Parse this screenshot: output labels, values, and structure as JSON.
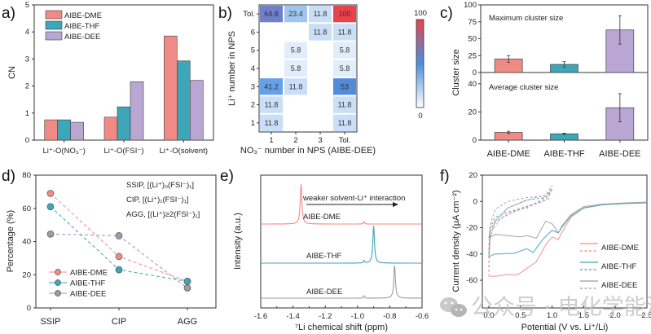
{
  "colors": {
    "dme": "#F08A84",
    "thf": "#3DA6B8",
    "dee": "#B9A6D3",
    "dee_line": "#9E9AA6",
    "heat_low": "#FFFFFF",
    "heat_mid": "#4A90E2",
    "heat_high": "#E8434B"
  },
  "watermark": "公众号 · 电化学能源",
  "chart_data": [
    {
      "panel": "a)",
      "type": "bar",
      "ylabel": "CN",
      "xlabel": "",
      "ylim": [
        0,
        5
      ],
      "yticks": [
        "0",
        "1",
        "2",
        "3",
        "4",
        "5"
      ],
      "categories": [
        "Li⁺-O(NO₃⁻)",
        "Li⁺-O(FSI⁻)",
        "Li⁺-O(solvent)"
      ],
      "series": [
        {
          "name": "AIBE-DME",
          "values": [
            0.75,
            0.85,
            3.85
          ]
        },
        {
          "name": "AIBE-THF",
          "values": [
            0.75,
            1.23,
            2.93
          ]
        },
        {
          "name": "AIBE-DEE",
          "values": [
            0.66,
            2.16,
            2.21
          ]
        }
      ],
      "legend": "top-left"
    },
    {
      "panel": "b)",
      "type": "heatmap",
      "xlabel": "NO₃⁻ number in NPS (AIBE-DEE)",
      "ylabel": "Li⁺ number in NPS",
      "x_categories": [
        "1",
        "2",
        "3",
        "Tol."
      ],
      "y_categories": [
        "Tol.",
        "6",
        "5",
        "4",
        "3",
        "2",
        "1"
      ],
      "values": [
        [
          64.8,
          23.4,
          11.8,
          100
        ],
        [
          null,
          null,
          11.8,
          11.8
        ],
        [
          null,
          5.8,
          null,
          5.8
        ],
        [
          null,
          5.8,
          null,
          5.8
        ],
        [
          41.2,
          11.8,
          null,
          53
        ],
        [
          11.8,
          null,
          null,
          11.8
        ],
        [
          11.8,
          null,
          null,
          11.8
        ]
      ],
      "labels": [
        [
          "64.8",
          "23.4",
          "11.8",
          "100"
        ],
        [
          "",
          "",
          "11.8",
          "11.8"
        ],
        [
          "",
          "5.8",
          "",
          "5.8"
        ],
        [
          "",
          "5.8",
          "",
          "5.8"
        ],
        [
          "41.2",
          "11.8",
          "",
          "53"
        ],
        [
          "11.8",
          "",
          "",
          "11.8"
        ],
        [
          "11.8",
          "",
          "",
          "11.8"
        ]
      ],
      "colorbar": {
        "min": 0,
        "max": 100,
        "min_label": "0",
        "max_label": "100"
      }
    },
    {
      "panel": "c)",
      "type": "bar",
      "ylabel": "Cluster size",
      "categories": [
        "AIBE-DME",
        "AIBE-THF",
        "AIBE-DEE"
      ],
      "subplots": [
        {
          "title": "Maximum cluster size",
          "ylim": [
            0,
            100
          ],
          "yticks": [
            "0",
            "25",
            "50",
            "75",
            "100"
          ],
          "values": [
            20,
            12,
            63
          ],
          "errors": [
            5,
            4,
            21
          ]
        },
        {
          "title": "Average cluster size",
          "ylim": [
            0,
            48
          ],
          "yticks": [
            "0",
            "20",
            "40"
          ],
          "values": [
            5.5,
            4.5,
            23
          ],
          "errors": [
            0.8,
            0.4,
            10
          ]
        }
      ]
    },
    {
      "panel": "d)",
      "type": "line",
      "ylabel": "Percentage (%)",
      "ylim": [
        0,
        80
      ],
      "yticks": [
        "0",
        "20",
        "40",
        "60",
        "80"
      ],
      "categories": [
        "SSIP",
        "CIP",
        "AGG"
      ],
      "series": [
        {
          "name": "AIBE-DME",
          "values": [
            69,
            31,
            16
          ]
        },
        {
          "name": "AIBE-THF",
          "values": [
            61,
            23,
            16
          ]
        },
        {
          "name": "AIBE-DEE",
          "values": [
            44.5,
            43.5,
            12
          ]
        }
      ],
      "annotations": [
        {
          "name": "SSIP",
          "formula": "[(Li⁺)₀(FSI⁻)₁]"
        },
        {
          "name": "CIP",
          "formula": "[(Li⁺)₁(FSI⁻)₁]"
        },
        {
          "name": "AGG",
          "formula": "[(Li⁺)≥2(FSI⁻)₁]"
        }
      ],
      "legend": "bottom-left"
    },
    {
      "panel": "e)",
      "type": "line",
      "xlabel": "⁷Li chemical shift (ppm)",
      "ylabel": "Intensity (a.u.)",
      "xlim": [
        -1.6,
        -0.6
      ],
      "xticks": [
        "-1.6",
        "-1.4",
        "-1.2",
        "-1.0",
        "-0.8",
        "-0.6"
      ],
      "annotation": "weaker solvent-Li⁺ interaction",
      "series": [
        {
          "name": "AIBE-DME",
          "peak_ppm": -1.35,
          "minor_peak_ppm": -0.96
        },
        {
          "name": "AIBE-THF",
          "peak_ppm": -0.9,
          "minor_peak_ppm": -0.96
        },
        {
          "name": "AIBE-DEE",
          "peak_ppm": -0.77,
          "minor_peak_ppm": -0.96
        }
      ]
    },
    {
      "panel": "f)",
      "type": "line",
      "xlabel": "Potential (V vs. Li⁺/Li)",
      "ylabel": "Current density (μA cm⁻²)",
      "xlim": [
        0,
        2.5
      ],
      "ylim": [
        -68,
        20
      ],
      "xticks": [
        "0.0",
        "0.5",
        "1.0",
        "1.5",
        "2.0",
        "2.5"
      ],
      "yticks": [
        "-60",
        "-40",
        "-20",
        "0",
        "20"
      ],
      "legend": "right",
      "series": [
        {
          "name": "AIBE-DME",
          "style": "solid",
          "x": [
            0,
            0.1,
            0.3,
            0.45,
            0.6,
            0.75,
            0.9,
            1.0,
            1.1,
            1.15,
            1.3,
            1.5,
            1.8,
            2.2,
            2.5
          ],
          "y": [
            -57,
            -57,
            -55.5,
            -56,
            -51,
            -46,
            -33,
            -27,
            -29,
            -24,
            -12,
            -5,
            -2.5,
            -1.5,
            -1
          ]
        },
        {
          "name": "AIBE-DME cycle",
          "style": "dashed",
          "x": [
            0,
            0.0,
            0.05,
            0.2,
            0.5,
            0.8,
            0.95,
            1.0,
            0.9,
            0.6,
            0.3,
            0.1,
            0.02,
            0
          ],
          "y": [
            -57,
            -30,
            -22,
            -12,
            -5,
            -1,
            2,
            12,
            5,
            1,
            -5,
            -15,
            -22,
            -57
          ]
        },
        {
          "name": "AIBE-THF",
          "style": "solid",
          "x": [
            0,
            0.1,
            0.4,
            0.6,
            0.7,
            0.85,
            1.0,
            1.1,
            1.15,
            1.3,
            1.5,
            1.8,
            2.2,
            2.5
          ],
          "y": [
            -42,
            -40,
            -39.5,
            -36,
            -39,
            -29,
            -22,
            -24,
            -20,
            -11,
            -5,
            -2.5,
            -1.5,
            -1
          ]
        },
        {
          "name": "AIBE-THF cycle",
          "style": "dashed",
          "x": [
            0,
            0.02,
            0.1,
            0.3,
            0.6,
            0.9,
            1.0,
            0.9,
            0.6,
            0.3,
            0.1,
            0.02,
            0
          ],
          "y": [
            -42,
            -28,
            -15,
            -5,
            1,
            3,
            9,
            3,
            -5,
            -8,
            -12,
            -20,
            -42
          ]
        },
        {
          "name": "AIBE-DEE",
          "style": "solid",
          "x": [
            0,
            0.1,
            0.3,
            0.5,
            0.6,
            0.75,
            0.9,
            1.0,
            1.1,
            1.15,
            1.3,
            1.5,
            1.8,
            2.2,
            2.5
          ],
          "y": [
            -28,
            -25,
            -26,
            -27,
            -26,
            -28,
            -15,
            -17,
            -24,
            -19,
            -10,
            -4,
            -2,
            -1,
            -0.5
          ]
        },
        {
          "name": "AIBE-DEE cycle",
          "style": "dashed",
          "x": [
            0,
            0.02,
            0.1,
            0.3,
            0.6,
            0.9,
            1.0,
            0.9,
            0.6,
            0.3,
            0.1,
            0.02,
            0
          ],
          "y": [
            -28,
            -18,
            -6,
            0,
            3,
            4,
            10,
            1,
            -4,
            -10,
            -16,
            -22,
            -28
          ]
        }
      ]
    }
  ]
}
